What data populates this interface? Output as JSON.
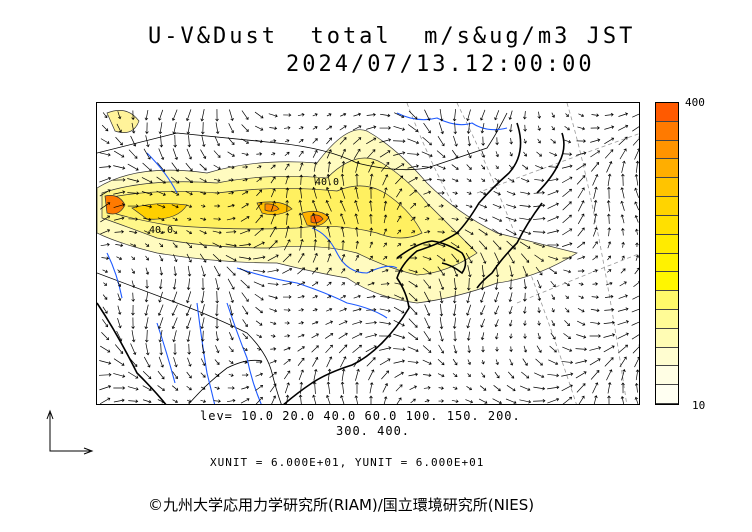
{
  "title_line1": "U-V&Dust  total  m/s&ug/m3 JST",
  "title_line2": "2024/07/13.12:00:00",
  "colorbar": {
    "max_label": "400",
    "min_label": "10",
    "colors": [
      "#ff5a00",
      "#ff7a00",
      "#ff9400",
      "#ffae00",
      "#ffc400",
      "#ffd400",
      "#ffe000",
      "#ffeb00",
      "#fff200",
      "#fff600",
      "#fff96a",
      "#fffb96",
      "#fffcb4",
      "#fffdd0",
      "#fffee4",
      "#fffff2"
    ]
  },
  "contour_labels": [
    "40.0",
    "40.0"
  ],
  "levels_line1": "lev= 10.0 20.0 40.0 60.0 100. 150. 200.",
  "levels_line2": "300. 400.",
  "units": "XUNIT = 6.000E+01, YUNIT = 6.000E+01",
  "copyright": "©九州大学応用力学研究所(RIAM)/国立環境研究所(NIES)"
}
